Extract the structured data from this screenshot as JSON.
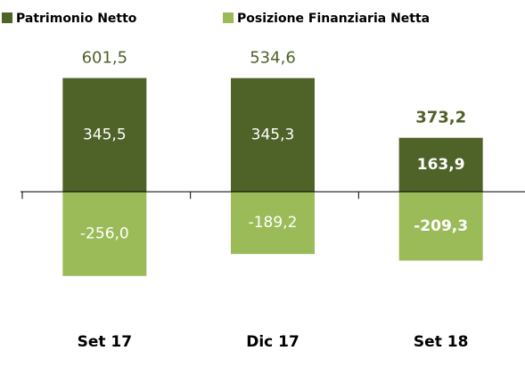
{
  "chart_data": {
    "type": "bar",
    "categories": [
      "Set 17",
      "Dic 17",
      "Set 18"
    ],
    "series": [
      {
        "name": "Patrimonio Netto",
        "color": "#4f6228",
        "values": [
          345.5,
          345.3,
          163.9
        ],
        "value_labels": [
          "345,5",
          "345,3",
          "163,9"
        ]
      },
      {
        "name": "Posizione Finanziaria Netta",
        "color": "#9bbb59",
        "values": [
          -256.0,
          -189.2,
          -209.3
        ],
        "value_labels": [
          "-256,0",
          "-189,2",
          "-209,3"
        ]
      }
    ],
    "totals": {
      "color": "#4f6228",
      "values": [
        601.5,
        534.6,
        373.2
      ],
      "value_labels": [
        "601,5",
        "534,6",
        "373,2"
      ]
    },
    "ylim": [
      -400,
      450
    ],
    "legend": "top-left"
  }
}
